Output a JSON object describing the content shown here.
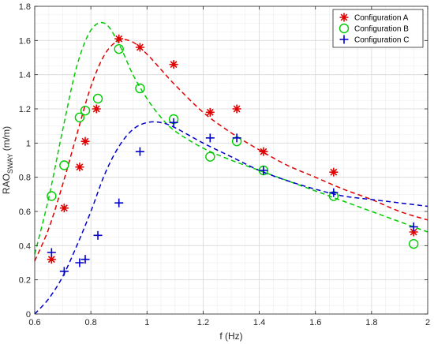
{
  "chart_data": {
    "type": "scatter",
    "xlabel": "f (Hz)",
    "ylabel_main": "RAO",
    "ylabel_sub": "SWAY",
    "ylabel_unit": " (m/m)",
    "xlim": [
      0.6,
      2.0
    ],
    "ylim": [
      0,
      1.8
    ],
    "x_ticks": [
      0.6,
      0.8,
      1,
      1.2,
      1.4,
      1.6,
      1.8,
      2
    ],
    "x_tick_labels": [
      "0.6",
      "0.8",
      "1",
      "1.2",
      "1.4",
      "1.6",
      "1.8",
      "2"
    ],
    "y_ticks": [
      0,
      0.2,
      0.4,
      0.6,
      0.8,
      1,
      1.2,
      1.4,
      1.6,
      1.8
    ],
    "y_tick_labels": [
      "0",
      "0.2",
      "0.4",
      "0.6",
      "0.8",
      "1",
      "1.2",
      "1.4",
      "1.6",
      "1.8"
    ],
    "grid": true,
    "minor_grid": true,
    "legend_position": "top-right",
    "series": [
      {
        "name": "Configuration A",
        "color": "#e00000",
        "marker": "asterisk",
        "points": [
          [
            0.66,
            0.32
          ],
          [
            0.705,
            0.62
          ],
          [
            0.76,
            0.86
          ],
          [
            0.78,
            1.01
          ],
          [
            0.82,
            1.2
          ],
          [
            0.9,
            1.61
          ],
          [
            0.975,
            1.56
          ],
          [
            1.095,
            1.46
          ],
          [
            1.225,
            1.18
          ],
          [
            1.32,
            1.2
          ],
          [
            1.415,
            0.95
          ],
          [
            1.665,
            0.83
          ],
          [
            1.95,
            0.48
          ]
        ],
        "curve": [
          [
            0.6,
            0.31
          ],
          [
            0.65,
            0.5
          ],
          [
            0.7,
            0.76
          ],
          [
            0.75,
            1.05
          ],
          [
            0.8,
            1.33
          ],
          [
            0.85,
            1.52
          ],
          [
            0.9,
            1.6
          ],
          [
            0.95,
            1.59
          ],
          [
            1.0,
            1.52
          ],
          [
            1.05,
            1.43
          ],
          [
            1.1,
            1.34
          ],
          [
            1.2,
            1.18
          ],
          [
            1.3,
            1.06
          ],
          [
            1.4,
            0.96
          ],
          [
            1.5,
            0.87
          ],
          [
            1.6,
            0.8
          ],
          [
            1.7,
            0.73
          ],
          [
            1.8,
            0.67
          ],
          [
            1.9,
            0.6
          ],
          [
            2.0,
            0.55
          ]
        ]
      },
      {
        "name": "Configuration B",
        "color": "#00cc00",
        "marker": "circle",
        "points": [
          [
            0.66,
            0.69
          ],
          [
            0.705,
            0.87
          ],
          [
            0.76,
            1.15
          ],
          [
            0.78,
            1.19
          ],
          [
            0.825,
            1.26
          ],
          [
            0.9,
            1.55
          ],
          [
            0.975,
            1.32
          ],
          [
            1.095,
            1.14
          ],
          [
            1.225,
            0.92
          ],
          [
            1.32,
            1.01
          ],
          [
            1.415,
            0.84
          ],
          [
            1.665,
            0.69
          ],
          [
            1.95,
            0.41
          ]
        ],
        "curve": [
          [
            0.6,
            0.35
          ],
          [
            0.65,
            0.68
          ],
          [
            0.7,
            1.08
          ],
          [
            0.75,
            1.45
          ],
          [
            0.8,
            1.66
          ],
          [
            0.85,
            1.7
          ],
          [
            0.9,
            1.58
          ],
          [
            0.95,
            1.4
          ],
          [
            1.0,
            1.26
          ],
          [
            1.05,
            1.15
          ],
          [
            1.1,
            1.07
          ],
          [
            1.2,
            0.97
          ],
          [
            1.3,
            0.9
          ],
          [
            1.4,
            0.84
          ],
          [
            1.5,
            0.78
          ],
          [
            1.6,
            0.72
          ],
          [
            1.7,
            0.66
          ],
          [
            1.8,
            0.6
          ],
          [
            1.9,
            0.54
          ],
          [
            2.0,
            0.48
          ]
        ]
      },
      {
        "name": "Configuration C",
        "color": "#0000cc",
        "marker": "plus",
        "points": [
          [
            0.66,
            0.36
          ],
          [
            0.705,
            0.25
          ],
          [
            0.76,
            0.3
          ],
          [
            0.78,
            0.32
          ],
          [
            0.825,
            0.46
          ],
          [
            0.9,
            0.65
          ],
          [
            0.975,
            0.95
          ],
          [
            1.095,
            1.12
          ],
          [
            1.225,
            1.03
          ],
          [
            1.32,
            1.03
          ],
          [
            1.415,
            0.84
          ],
          [
            1.665,
            0.71
          ],
          [
            1.95,
            0.51
          ]
        ],
        "curve": [
          [
            0.6,
            0.0
          ],
          [
            0.65,
            0.09
          ],
          [
            0.7,
            0.22
          ],
          [
            0.75,
            0.4
          ],
          [
            0.8,
            0.6
          ],
          [
            0.85,
            0.82
          ],
          [
            0.9,
            0.98
          ],
          [
            0.95,
            1.08
          ],
          [
            1.0,
            1.12
          ],
          [
            1.05,
            1.12
          ],
          [
            1.1,
            1.09
          ],
          [
            1.2,
            1.0
          ],
          [
            1.3,
            0.92
          ],
          [
            1.4,
            0.84
          ],
          [
            1.5,
            0.78
          ],
          [
            1.6,
            0.73
          ],
          [
            1.7,
            0.69
          ],
          [
            1.8,
            0.67
          ],
          [
            1.9,
            0.65
          ],
          [
            2.0,
            0.63
          ]
        ]
      }
    ]
  }
}
